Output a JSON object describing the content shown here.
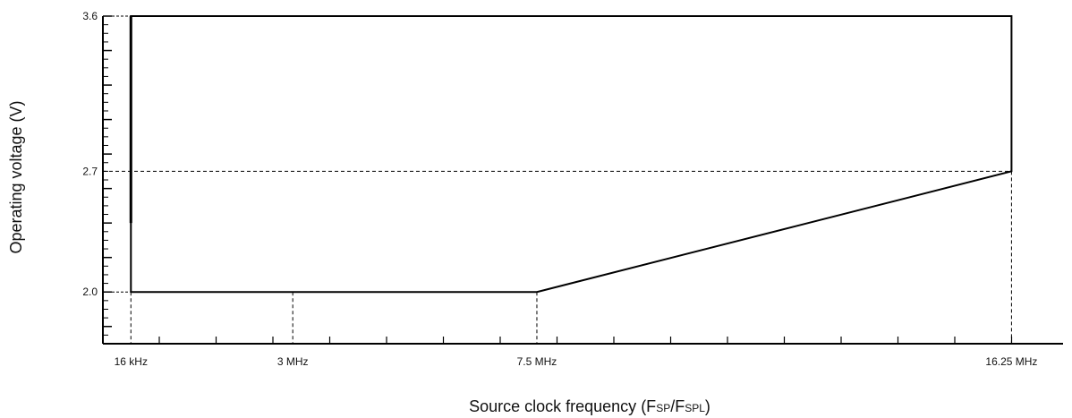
{
  "chart_data": {
    "type": "line",
    "title": "",
    "ylabel": "Operating voltage (V)",
    "xlabel": {
      "main": "Source clock frequency (F",
      "sub1": "SP",
      "sep": "/F",
      "sub2": "SPL",
      "close": ")"
    },
    "x_ticks": [
      {
        "label": "16 kHz",
        "pos": 0.016
      },
      {
        "label": "3 MHz",
        "pos": 3
      },
      {
        "label": "7.5 MHz",
        "pos": 7.5
      },
      {
        "label": "16.25 MHz",
        "pos": 16.25
      }
    ],
    "y_ticks": [
      {
        "label": "2.0",
        "value": 2.0
      },
      {
        "label": "2.7",
        "value": 2.7
      },
      {
        "label": "3.6",
        "value": 3.6
      }
    ],
    "xlim_mhz": [
      -0.5,
      17.2
    ],
    "ylim": [
      1.7,
      3.6
    ],
    "series": [
      {
        "points": [
          [
            0.016,
            2.0
          ],
          [
            7.5,
            2.0
          ],
          [
            16.25,
            2.7
          ],
          [
            16.25,
            3.6
          ],
          [
            0.016,
            3.6
          ],
          [
            0.016,
            2.0
          ]
        ]
      }
    ],
    "guides": {
      "vertical_dashed_at_mhz": [
        0.016,
        3,
        7.5,
        16.25
      ],
      "horizontal_dashed_at_v": [
        2.7
      ]
    },
    "grid": false,
    "legend": "none"
  }
}
